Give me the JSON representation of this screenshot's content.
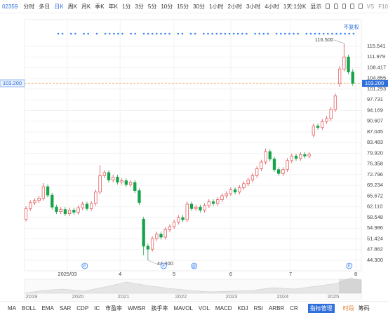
{
  "toolbar": {
    "code": "02359",
    "periods": [
      "分时",
      "多日",
      "日K",
      "周K",
      "月K",
      "季K",
      "年K",
      "1分",
      "3分",
      "5分",
      "10分",
      "15分",
      "30分",
      "1小时",
      "2小时",
      "3小时",
      "4小时",
      "1天:1分K",
      "显示"
    ],
    "active_index": 2,
    "right": [
      "VS",
      "F10"
    ]
  },
  "chart_data": {
    "type": "candlestick",
    "adjust_label": "不复权",
    "open": [
      58.0,
      61.5,
      63.5,
      64.2,
      65.0,
      68.8,
      66.0,
      62.0,
      60.5,
      61.2,
      59.8,
      61.0,
      60.3,
      61.8,
      63.0,
      61.5,
      63.2,
      67.0,
      72.5,
      73.5,
      71.0,
      72.0,
      70.3,
      70.8,
      69.5,
      70.2,
      67.5,
      58.0,
      49.0,
      48.0,
      51.5,
      53.0,
      52.0,
      54.5,
      55.5,
      57.0,
      58.5,
      57.8,
      63.0,
      61.5,
      62.0,
      61.0,
      62.5,
      63.8,
      63.2,
      64.5,
      65.8,
      66.5,
      67.8,
      67.0,
      68.5,
      69.8,
      71.0,
      72.5,
      74.8,
      77.0,
      80.5,
      78.0,
      74.5,
      73.2,
      74.5,
      77.5,
      79.0,
      78.2,
      79.5,
      79.0,
      86.0,
      89.0,
      88.5,
      90.5,
      91.5,
      94.5,
      103.0,
      108.0,
      112.0,
      107.0
    ],
    "high": [
      62.3,
      64.3,
      65.0,
      65.8,
      70.0,
      69.6,
      66.8,
      62.8,
      62.0,
      62.0,
      61.8,
      61.8,
      62.6,
      63.8,
      63.8,
      64.0,
      67.8,
      76.0,
      74.3,
      74.3,
      72.8,
      72.8,
      71.6,
      71.6,
      71.0,
      71.0,
      68.3,
      58.8,
      49.8,
      52.3,
      53.8,
      53.8,
      55.3,
      56.3,
      57.8,
      59.3,
      59.3,
      63.8,
      63.8,
      62.8,
      62.8,
      63.3,
      64.6,
      64.6,
      65.3,
      66.6,
      67.3,
      68.6,
      68.6,
      69.3,
      70.6,
      71.8,
      73.3,
      75.6,
      77.8,
      81.5,
      81.3,
      78.8,
      75.3,
      75.3,
      78.3,
      79.8,
      79.8,
      80.3,
      80.3,
      80.4,
      89.8,
      89.8,
      91.3,
      92.3,
      95.3,
      99.8,
      109.0,
      116.5,
      112.8,
      108.0
    ],
    "low": [
      57.2,
      60.7,
      62.7,
      63.4,
      64.2,
      65.2,
      61.2,
      59.7,
      59.7,
      59.0,
      59.0,
      59.5,
      59.5,
      61.0,
      60.7,
      60.7,
      62.4,
      66.2,
      71.7,
      70.2,
      70.2,
      69.5,
      69.5,
      68.7,
      68.7,
      66.7,
      62.7,
      46.0,
      44.3,
      47.2,
      50.7,
      51.2,
      51.2,
      53.7,
      54.7,
      56.2,
      57.0,
      57.0,
      60.7,
      60.7,
      60.2,
      60.2,
      61.7,
      62.4,
      62.4,
      63.7,
      65.0,
      65.7,
      66.2,
      66.2,
      67.7,
      69.0,
      70.2,
      71.7,
      74.0,
      76.2,
      77.2,
      73.7,
      72.4,
      72.4,
      73.7,
      76.7,
      77.4,
      77.4,
      78.2,
      78.2,
      85.2,
      87.7,
      87.7,
      89.7,
      90.7,
      93.7,
      102.0,
      107.2,
      106.2,
      102.4
    ],
    "close": [
      61.5,
      63.5,
      64.2,
      65.0,
      68.8,
      66.0,
      62.0,
      60.5,
      61.2,
      59.8,
      61.0,
      60.3,
      61.8,
      63.0,
      61.5,
      63.2,
      67.0,
      72.5,
      73.5,
      71.0,
      72.0,
      70.3,
      70.8,
      69.5,
      70.2,
      67.5,
      63.5,
      49.0,
      48.0,
      51.5,
      53.0,
      52.0,
      54.5,
      55.5,
      57.0,
      58.5,
      57.8,
      63.0,
      61.5,
      62.0,
      61.0,
      62.5,
      63.8,
      63.2,
      64.5,
      65.8,
      66.5,
      67.8,
      67.0,
      68.5,
      69.8,
      71.0,
      72.5,
      74.8,
      77.0,
      80.5,
      78.0,
      74.5,
      73.2,
      74.5,
      77.5,
      79.0,
      78.2,
      79.5,
      79.0,
      79.6,
      89.0,
      88.5,
      90.5,
      91.5,
      94.5,
      99.0,
      108.0,
      112.0,
      107.0,
      103.2
    ],
    "up_color": "#e5484d",
    "down_color": "#16a34a",
    "ylim": [
      41.73,
      120.45
    ],
    "yticks": [
      115.541,
      111.979,
      108.417,
      104.855,
      101.293,
      97.731,
      94.169,
      90.607,
      87.045,
      83.483,
      {
        "value": 79.92,
        "label": "79.920"
      },
      76.358,
      72.796,
      69.234,
      65.672,
      {
        "value": 62.11,
        "label": "62.110"
      },
      58.548,
      54.986,
      51.424,
      47.862,
      {
        "value": 44.3,
        "label": "44.300"
      }
    ],
    "xticks": [
      {
        "value": 9.5,
        "label": "2025/03"
      },
      {
        "value": 21.6,
        "label": "4"
      },
      {
        "value": 34,
        "label": "5"
      },
      {
        "value": 47,
        "label": "6"
      },
      {
        "value": 60.7,
        "label": "7"
      },
      {
        "value": 75.7,
        "label": "8"
      }
    ],
    "last_price": {
      "value": 103.2,
      "label": "103.200"
    },
    "max_annotation": {
      "index": 73,
      "value": 116.5,
      "label": "116.500"
    },
    "min_annotation": {
      "index": 28,
      "value": 44.3,
      "label": "44.300"
    },
    "events": [
      {
        "value": 13.5,
        "label": "E"
      },
      {
        "value": 31.6,
        "label": "E"
      },
      {
        "value": 38.6,
        "label": "@"
      },
      {
        "value": 74.2,
        "label": "E"
      }
    ],
    "grid": true
  },
  "navigator": {
    "years": [
      "2019",
      "2020",
      "2021",
      "2022",
      "2023",
      "2024",
      "2025"
    ]
  },
  "indicators": {
    "items": [
      "MA",
      "BOLL",
      "EMA",
      "SAR",
      "CDP",
      "IC",
      "市盈率",
      "WMSR",
      "换手率",
      "MAVOL",
      "VOL",
      "MACD",
      "KDJ",
      "RSI",
      "ARBR",
      "CR"
    ],
    "manage": "指标管理",
    "session": "时段",
    "chips": "筹码"
  }
}
